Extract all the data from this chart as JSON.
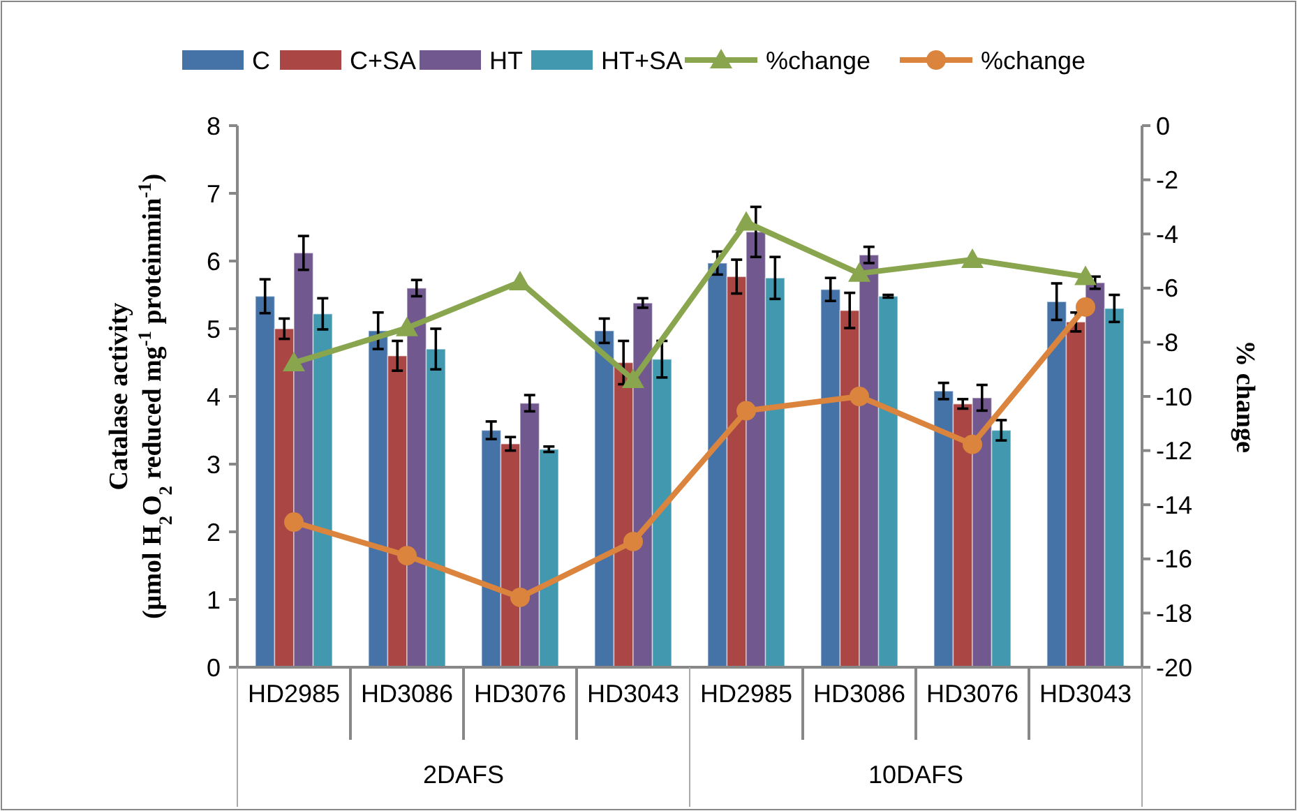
{
  "chart_data": {
    "type": "bar",
    "ylabel": "Catalase activity\n(µmol  H$_{2}$O$_{2}$ reduced mg$^{-1}$  proteinmin$^{-1}$)",
    "y2label": "% change",
    "categories": [
      "HD2985",
      "HD3086",
      "HD3076",
      "HD3043",
      "HD2985",
      "HD3086",
      "HD3076",
      "HD3043"
    ],
    "annotations": [
      "2DAFS",
      "10DAFS"
    ],
    "ylim": [
      0,
      8
    ],
    "yticks": [
      0,
      1,
      2,
      3,
      4,
      5,
      6,
      7,
      8
    ],
    "y2lim": [
      -20,
      0
    ],
    "y2ticks": [
      -20,
      -18,
      -16,
      -14,
      -12,
      -10,
      -8,
      -6,
      -4,
      -2,
      0
    ],
    "grid": false,
    "legend": "top",
    "series": [
      {
        "name": "C",
        "color": "#4572a7",
        "values": [
          5.48,
          4.97,
          3.5,
          4.97,
          5.97,
          5.58,
          4.08,
          5.4
        ],
        "errors": [
          0.25,
          0.27,
          0.13,
          0.18,
          0.17,
          0.17,
          0.12,
          0.27
        ]
      },
      {
        "name": "C+SA",
        "color": "#aa4643",
        "values": [
          5.0,
          4.6,
          3.3,
          4.5,
          5.77,
          5.27,
          3.89,
          5.1
        ],
        "errors": [
          0.15,
          0.22,
          0.1,
          0.32,
          0.25,
          0.26,
          0.07,
          0.14
        ]
      },
      {
        "name": "HT",
        "color": "#71588f",
        "values": [
          6.12,
          5.6,
          3.9,
          5.38,
          6.43,
          6.09,
          3.98,
          5.68
        ],
        "errors": [
          0.25,
          0.12,
          0.12,
          0.07,
          0.37,
          0.12,
          0.19,
          0.09
        ]
      },
      {
        "name": "HT+SA",
        "color": "#4198af",
        "values": [
          5.22,
          4.7,
          3.22,
          4.55,
          5.75,
          5.48,
          3.5,
          5.3
        ],
        "errors": [
          0.23,
          0.3,
          0.04,
          0.27,
          0.31,
          0.02,
          0.15,
          0.2
        ]
      },
      {
        "name": "%change",
        "type": "line",
        "axis": "y2",
        "marker": "triangle",
        "color": "#89a54e",
        "values": [
          -8.76,
          -7.47,
          -5.77,
          -9.38,
          -3.57,
          -5.46,
          -4.95,
          -5.58
        ]
      },
      {
        "name": "%change",
        "type": "line",
        "axis": "y2",
        "marker": "circle",
        "color": "#db843d",
        "values": [
          -14.64,
          -15.88,
          -17.42,
          -15.36,
          -10.53,
          -10.0,
          -11.77,
          -6.7
        ]
      }
    ]
  }
}
